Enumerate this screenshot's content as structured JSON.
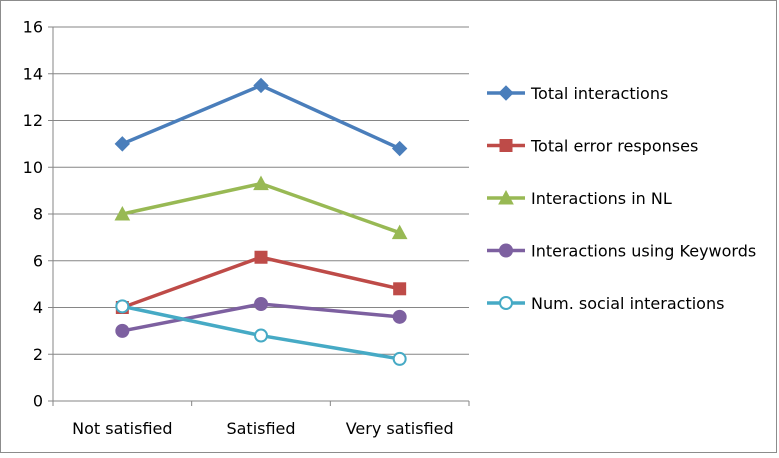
{
  "chart_data": {
    "type": "line",
    "title": "",
    "xlabel": "",
    "ylabel": "",
    "categories": [
      "Not satisfied",
      "Satisfied",
      "Very satisfied"
    ],
    "ylim": [
      0,
      16
    ],
    "yticks": [
      0,
      2,
      4,
      6,
      8,
      10,
      12,
      14,
      16
    ],
    "grid": true,
    "legend_position": "right",
    "series": [
      {
        "name": "Total interactions",
        "values": [
          11.0,
          13.5,
          10.8
        ],
        "color": "#4a7ebb",
        "marker": "diamond"
      },
      {
        "name": "Total error responses",
        "values": [
          4.0,
          6.15,
          4.8
        ],
        "color": "#be4b48",
        "marker": "square"
      },
      {
        "name": "Interactions in NL",
        "values": [
          8.0,
          9.3,
          7.2
        ],
        "color": "#98b954",
        "marker": "triangle"
      },
      {
        "name": "Interactions using Keywords",
        "values": [
          3.0,
          4.15,
          3.6
        ],
        "color": "#7d60a0",
        "marker": "circle"
      },
      {
        "name": "Num. social interactions",
        "values": [
          4.05,
          2.8,
          1.8
        ],
        "color": "#46aac5",
        "marker": "open-circle"
      }
    ]
  }
}
